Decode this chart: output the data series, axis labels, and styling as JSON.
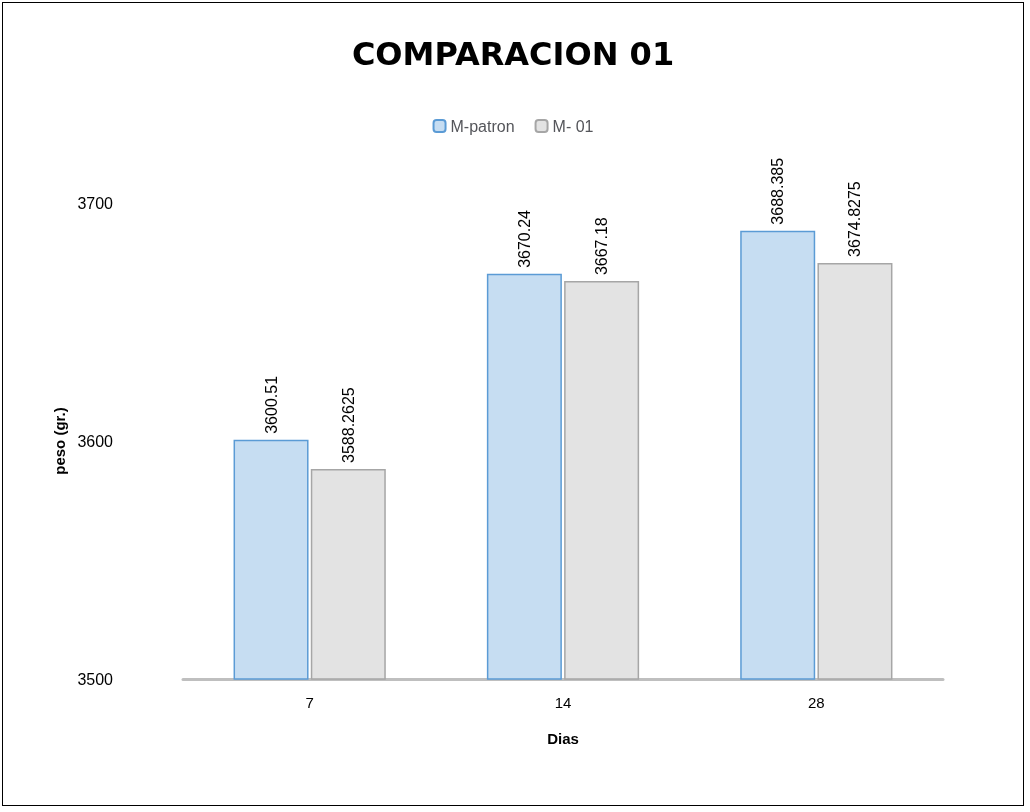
{
  "chart_data": {
    "type": "bar",
    "title": "COMPARACION 01",
    "xlabel": "Dias",
    "ylabel": "peso (gr.)",
    "categories": [
      "7",
      "14",
      "28"
    ],
    "series": [
      {
        "name": "M-patron",
        "color": "#c6ddf2",
        "values": [
          3600.51,
          3670.24,
          3688.385
        ]
      },
      {
        "name": "M- 01",
        "color": "#e3e3e3",
        "values": [
          3588.2625,
          3667.18,
          3674.8275
        ]
      }
    ],
    "ylim": [
      3500,
      3700
    ],
    "yticks": [
      3500,
      3600,
      3700
    ],
    "grid": false,
    "legend": "top",
    "data_labels": true
  }
}
